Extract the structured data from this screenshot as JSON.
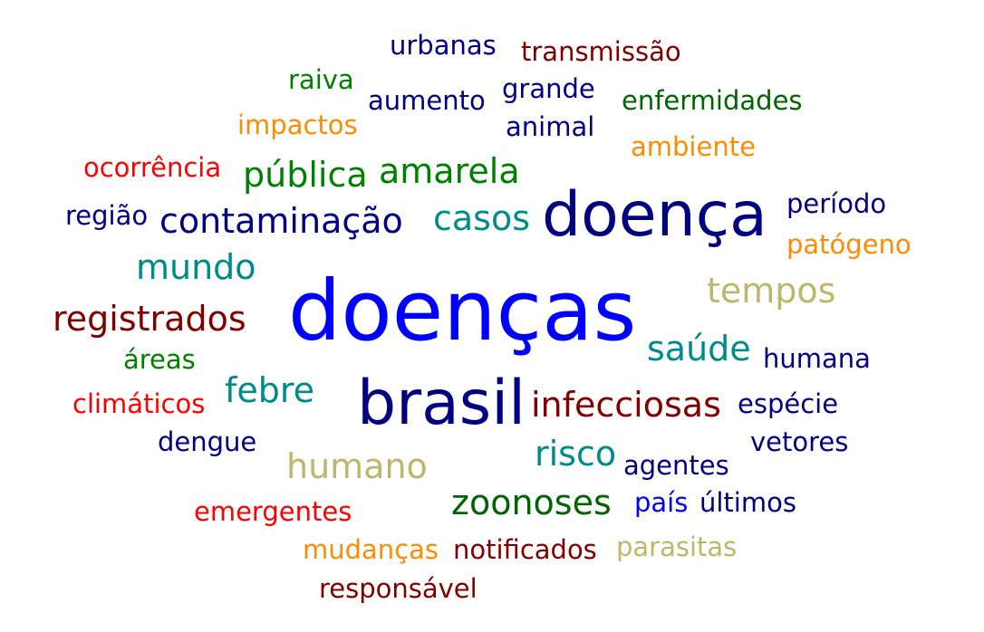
{
  "words": [
    {
      "text": "urbanas",
      "color": "#000080"
    },
    {
      "text": "transmissão",
      "color": "#800000"
    },
    {
      "text": "raiva",
      "color": "#008000"
    },
    {
      "text": "aumento",
      "color": "#000080"
    },
    {
      "text": "grande",
      "color": "#000080"
    },
    {
      "text": "enfermidades",
      "color": "#006400"
    },
    {
      "text": "impactos",
      "color": "#FF8C00"
    },
    {
      "text": "animal",
      "color": "#000080"
    },
    {
      "text": "ambiente",
      "color": "#FF8C00"
    },
    {
      "text": "ocorrência",
      "color": "#FF0000"
    },
    {
      "text": "pública",
      "color": "#008000"
    },
    {
      "text": "amarela",
      "color": "#008000"
    },
    {
      "text": "região",
      "color": "#000080"
    },
    {
      "text": "contaminação",
      "color": "#000080"
    },
    {
      "text": "casos",
      "color": "#008B8B"
    },
    {
      "text": "doença",
      "color": "#000080"
    },
    {
      "text": "período",
      "color": "#000080"
    },
    {
      "text": "patógeno",
      "color": "#FF8C00"
    },
    {
      "text": "mundo",
      "color": "#008B8B"
    },
    {
      "text": "tempos",
      "color": "#BDB76B"
    },
    {
      "text": "registrados",
      "color": "#800000"
    },
    {
      "text": "doenças",
      "color": "#0000FF"
    },
    {
      "text": "saúde",
      "color": "#008B8B"
    },
    {
      "text": "áreas",
      "color": "#008000"
    },
    {
      "text": "humana",
      "color": "#000080"
    },
    {
      "text": "febre",
      "color": "#008B8B"
    },
    {
      "text": "climáticos",
      "color": "#FF0000"
    },
    {
      "text": "brasil",
      "color": "#000080"
    },
    {
      "text": "infecciosas",
      "color": "#800000"
    },
    {
      "text": "espécie",
      "color": "#000080"
    },
    {
      "text": "dengue",
      "color": "#000080"
    },
    {
      "text": "vetores",
      "color": "#000080"
    },
    {
      "text": "humano",
      "color": "#BDB76B"
    },
    {
      "text": "risco",
      "color": "#008B8B"
    },
    {
      "text": "agentes",
      "color": "#000080"
    },
    {
      "text": "zoonoses",
      "color": "#006400"
    },
    {
      "text": "emergentes",
      "color": "#FF0000"
    },
    {
      "text": "país",
      "color": "#0000FF"
    },
    {
      "text": "últimos",
      "color": "#000080"
    },
    {
      "text": "mudanças",
      "color": "#FF8C00"
    },
    {
      "text": "notificados",
      "color": "#800000"
    },
    {
      "text": "parasitas",
      "color": "#BDB76B"
    },
    {
      "text": "responsável",
      "color": "#800000"
    }
  ]
}
